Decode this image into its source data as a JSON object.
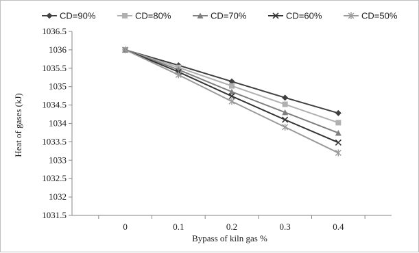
{
  "chart_data": {
    "type": "line",
    "title": "",
    "xlabel": "Bypass of kiln gas %",
    "ylabel": "Heat of gases (kJ)",
    "x": [
      0,
      0.1,
      0.2,
      0.3,
      0.4
    ],
    "x_tick_labels": [
      "0",
      "0.1",
      "0.2",
      "0.3",
      "0.4"
    ],
    "ylim": [
      1031.5,
      1036.5
    ],
    "y_ticks": [
      1031.5,
      1032,
      1032.5,
      1033,
      1033.5,
      1034,
      1034.5,
      1035,
      1035.5,
      1036,
      1036.5
    ],
    "y_tick_labels": [
      "1031.5",
      "1032",
      "1032.5",
      "1033",
      "1033.5",
      "1034",
      "1034.5",
      "1035",
      "1035.5",
      "1036",
      "1036.5"
    ],
    "grid": false,
    "legend_position": "top",
    "series": [
      {
        "name": "CD=90%",
        "values": [
          1036.0,
          1035.58,
          1035.14,
          1034.7,
          1034.28
        ],
        "color": "#404040",
        "marker": "diamond"
      },
      {
        "name": "CD=80%",
        "values": [
          1036.0,
          1035.52,
          1035.02,
          1034.52,
          1034.02
        ],
        "color": "#b0b0b0",
        "marker": "square"
      },
      {
        "name": "CD=70%",
        "values": [
          1036.0,
          1035.46,
          1034.86,
          1034.3,
          1033.74
        ],
        "color": "#7f7f7f",
        "marker": "triangle"
      },
      {
        "name": "CD=60%",
        "values": [
          1036.0,
          1035.4,
          1034.74,
          1034.1,
          1033.48
        ],
        "color": "#333333",
        "marker": "x"
      },
      {
        "name": "CD=50%",
        "values": [
          1036.0,
          1035.32,
          1034.6,
          1033.9,
          1033.2
        ],
        "color": "#999999",
        "marker": "star"
      }
    ]
  }
}
